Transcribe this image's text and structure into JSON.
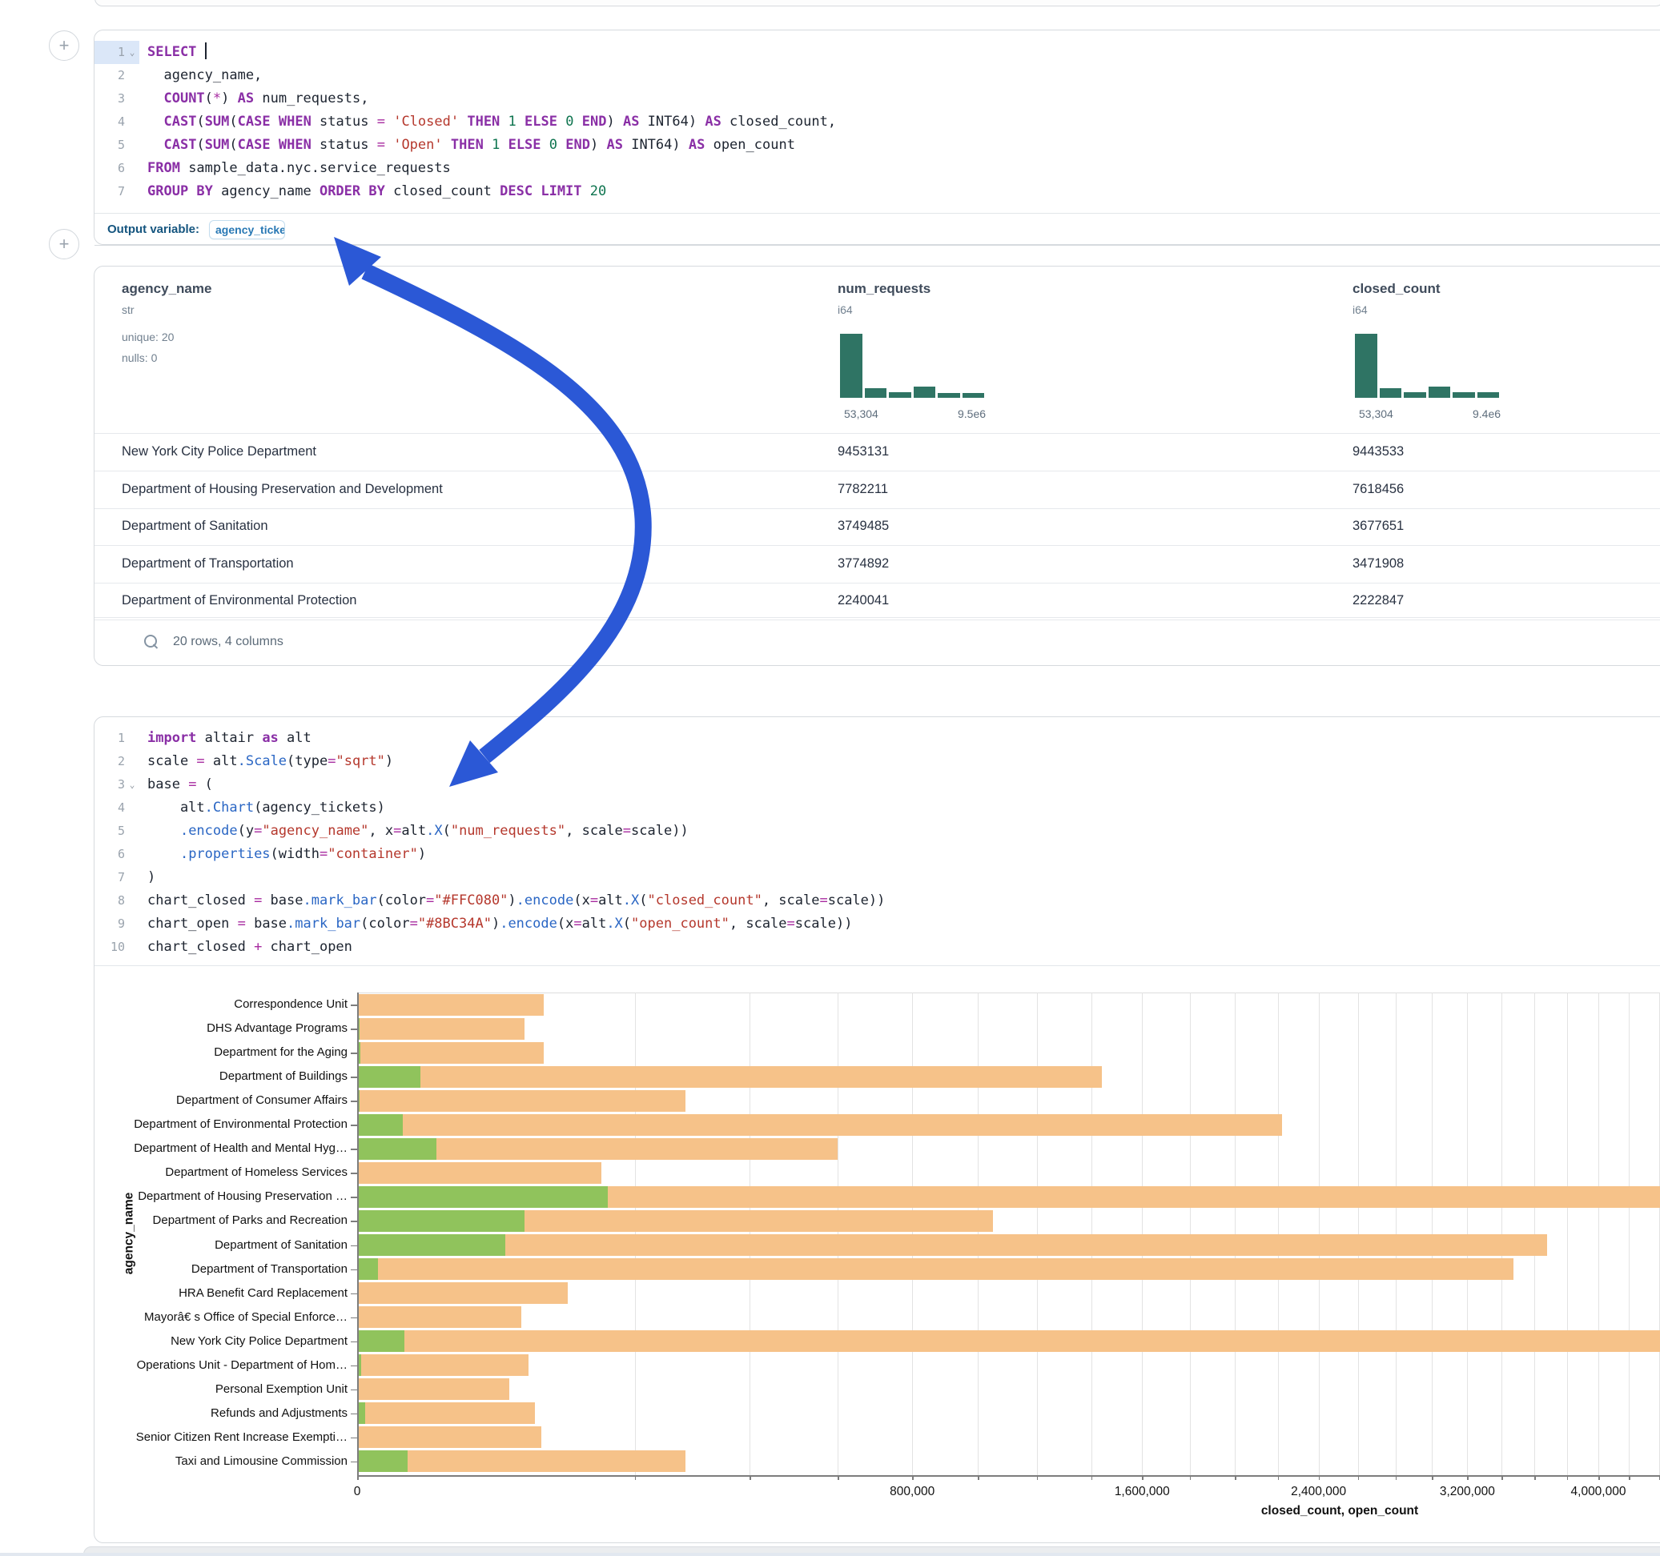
{
  "colors": {
    "closed_bar": "#f6c289",
    "open_bar": "#90c35c",
    "hist_bar": "#2f7464",
    "arrow": "#2b58d6"
  },
  "sql_cell": {
    "lines": [
      {
        "n": "1",
        "fold": true,
        "active": true,
        "tokens": [
          [
            "kw",
            "SELECT"
          ],
          [
            "pl",
            " "
          ],
          [
            "cursor",
            ""
          ]
        ]
      },
      {
        "n": "2",
        "tokens": [
          [
            "pl",
            "  agency_name,"
          ]
        ]
      },
      {
        "n": "3",
        "tokens": [
          [
            "pl",
            "  "
          ],
          [
            "kw",
            "COUNT"
          ],
          [
            "pl",
            "("
          ],
          [
            "op",
            "*"
          ],
          [
            "pl",
            ") "
          ],
          [
            "kw",
            "AS"
          ],
          [
            "pl",
            " num_requests,"
          ]
        ]
      },
      {
        "n": "4",
        "tokens": [
          [
            "pl",
            "  "
          ],
          [
            "kw",
            "CAST"
          ],
          [
            "pl",
            "("
          ],
          [
            "kw",
            "SUM"
          ],
          [
            "pl",
            "("
          ],
          [
            "kw",
            "CASE"
          ],
          [
            "pl",
            " "
          ],
          [
            "kw",
            "WHEN"
          ],
          [
            "pl",
            " status "
          ],
          [
            "op",
            "="
          ],
          [
            "pl",
            " "
          ],
          [
            "str",
            "'Closed'"
          ],
          [
            "pl",
            " "
          ],
          [
            "kw",
            "THEN"
          ],
          [
            "pl",
            " "
          ],
          [
            "num",
            "1"
          ],
          [
            "pl",
            " "
          ],
          [
            "kw",
            "ELSE"
          ],
          [
            "pl",
            " "
          ],
          [
            "num",
            "0"
          ],
          [
            "pl",
            " "
          ],
          [
            "kw",
            "END"
          ],
          [
            "pl",
            ") "
          ],
          [
            "kw",
            "AS"
          ],
          [
            "pl",
            " INT64) "
          ],
          [
            "kw",
            "AS"
          ],
          [
            "pl",
            " closed_count,"
          ]
        ]
      },
      {
        "n": "5",
        "tokens": [
          [
            "pl",
            "  "
          ],
          [
            "kw",
            "CAST"
          ],
          [
            "pl",
            "("
          ],
          [
            "kw",
            "SUM"
          ],
          [
            "pl",
            "("
          ],
          [
            "kw",
            "CASE"
          ],
          [
            "pl",
            " "
          ],
          [
            "kw",
            "WHEN"
          ],
          [
            "pl",
            " status "
          ],
          [
            "op",
            "="
          ],
          [
            "pl",
            " "
          ],
          [
            "str",
            "'Open'"
          ],
          [
            "pl",
            " "
          ],
          [
            "kw",
            "THEN"
          ],
          [
            "pl",
            " "
          ],
          [
            "num",
            "1"
          ],
          [
            "pl",
            " "
          ],
          [
            "kw",
            "ELSE"
          ],
          [
            "pl",
            " "
          ],
          [
            "num",
            "0"
          ],
          [
            "pl",
            " "
          ],
          [
            "kw",
            "END"
          ],
          [
            "pl",
            ") "
          ],
          [
            "kw",
            "AS"
          ],
          [
            "pl",
            " INT64) "
          ],
          [
            "kw",
            "AS"
          ],
          [
            "pl",
            " open_count"
          ]
        ]
      },
      {
        "n": "6",
        "tokens": [
          [
            "kw",
            "FROM"
          ],
          [
            "pl",
            " sample_data.nyc.service_requests"
          ]
        ]
      },
      {
        "n": "7",
        "tokens": [
          [
            "kw",
            "GROUP BY"
          ],
          [
            "pl",
            " agency_name "
          ],
          [
            "kw",
            "ORDER BY"
          ],
          [
            "pl",
            " closed_count "
          ],
          [
            "kw",
            "DESC"
          ],
          [
            "pl",
            " "
          ],
          [
            "kw",
            "LIMIT"
          ],
          [
            "pl",
            " "
          ],
          [
            "num",
            "20"
          ]
        ]
      }
    ],
    "output_variable_label": "Output variable:",
    "output_variable_chip": "agency_tickets"
  },
  "table": {
    "columns": [
      {
        "name": "agency_name",
        "type": "str",
        "stats": [
          "unique: 20",
          "nulls: 0"
        ]
      },
      {
        "name": "num_requests",
        "type": "i64",
        "hist": [
          13,
          2,
          1.2,
          2.2,
          1,
          1
        ],
        "min_label": "53,304",
        "max_label": "9.5e6"
      },
      {
        "name": "closed_count",
        "type": "i64",
        "hist": [
          13,
          2,
          1.2,
          2.2,
          1.2,
          1.1
        ],
        "min_label": "53,304",
        "max_label": "9.4e6"
      }
    ],
    "rows": [
      {
        "agency_name": "New York City Police Department",
        "num_requests": "9453131",
        "closed_count": "9443533"
      },
      {
        "agency_name": "Department of Housing Preservation and Development",
        "num_requests": "7782211",
        "closed_count": "7618456"
      },
      {
        "agency_name": "Department of Sanitation",
        "num_requests": "3749485",
        "closed_count": "3677651"
      },
      {
        "agency_name": "Department of Transportation",
        "num_requests": "3774892",
        "closed_count": "3471908"
      },
      {
        "agency_name": "Department of Environmental Protection",
        "num_requests": "2240041",
        "closed_count": "2222847"
      }
    ],
    "footer": "20 rows, 4 columns"
  },
  "python_cell": {
    "lines": [
      {
        "n": "1",
        "tokens": [
          [
            "kw",
            "import"
          ],
          [
            "pl",
            " altair "
          ],
          [
            "kw",
            "as"
          ],
          [
            "pl",
            " alt"
          ]
        ]
      },
      {
        "n": "2",
        "tokens": [
          [
            "pl",
            "scale "
          ],
          [
            "op",
            "="
          ],
          [
            "pl",
            " alt"
          ],
          [
            "fn",
            ".Scale"
          ],
          [
            "pl",
            "(type"
          ],
          [
            "op",
            "="
          ],
          [
            "str",
            "\"sqrt\""
          ],
          [
            "pl",
            ")"
          ]
        ]
      },
      {
        "n": "3",
        "fold": true,
        "tokens": [
          [
            "pl",
            "base "
          ],
          [
            "op",
            "="
          ],
          [
            "pl",
            " ("
          ]
        ]
      },
      {
        "n": "4",
        "tokens": [
          [
            "pl",
            "    alt"
          ],
          [
            "fn",
            ".Chart"
          ],
          [
            "pl",
            "(agency_tickets)"
          ]
        ]
      },
      {
        "n": "5",
        "tokens": [
          [
            "pl",
            "    "
          ],
          [
            "fn",
            ".encode"
          ],
          [
            "pl",
            "(y"
          ],
          [
            "op",
            "="
          ],
          [
            "str",
            "\"agency_name\""
          ],
          [
            "pl",
            ", x"
          ],
          [
            "op",
            "="
          ],
          [
            "pl",
            "alt"
          ],
          [
            "fn",
            ".X"
          ],
          [
            "pl",
            "("
          ],
          [
            "str",
            "\"num_requests\""
          ],
          [
            "pl",
            ", scale"
          ],
          [
            "op",
            "="
          ],
          [
            "pl",
            "scale))"
          ]
        ]
      },
      {
        "n": "6",
        "tokens": [
          [
            "pl",
            "    "
          ],
          [
            "fn",
            ".properties"
          ],
          [
            "pl",
            "(width"
          ],
          [
            "op",
            "="
          ],
          [
            "str",
            "\"container\""
          ],
          [
            "pl",
            ")"
          ]
        ]
      },
      {
        "n": "7",
        "tokens": [
          [
            "pl",
            ")"
          ]
        ]
      },
      {
        "n": "8",
        "tokens": [
          [
            "pl",
            "chart_closed "
          ],
          [
            "op",
            "="
          ],
          [
            "pl",
            " base"
          ],
          [
            "fn",
            ".mark_bar"
          ],
          [
            "pl",
            "(color"
          ],
          [
            "op",
            "="
          ],
          [
            "str",
            "\"#FFC080\""
          ],
          [
            "pl",
            ")"
          ],
          [
            "fn",
            ".encode"
          ],
          [
            "pl",
            "(x"
          ],
          [
            "op",
            "="
          ],
          [
            "pl",
            "alt"
          ],
          [
            "fn",
            ".X"
          ],
          [
            "pl",
            "("
          ],
          [
            "str",
            "\"closed_count\""
          ],
          [
            "pl",
            ", scale"
          ],
          [
            "op",
            "="
          ],
          [
            "pl",
            "scale))"
          ]
        ]
      },
      {
        "n": "9",
        "tokens": [
          [
            "pl",
            "chart_open "
          ],
          [
            "op",
            "="
          ],
          [
            "pl",
            " base"
          ],
          [
            "fn",
            ".mark_bar"
          ],
          [
            "pl",
            "(color"
          ],
          [
            "op",
            "="
          ],
          [
            "str",
            "\"#8BC34A\""
          ],
          [
            "pl",
            ")"
          ],
          [
            "fn",
            ".encode"
          ],
          [
            "pl",
            "(x"
          ],
          [
            "op",
            "="
          ],
          [
            "pl",
            "alt"
          ],
          [
            "fn",
            ".X"
          ],
          [
            "pl",
            "("
          ],
          [
            "str",
            "\"open_count\""
          ],
          [
            "pl",
            ", scale"
          ],
          [
            "op",
            "="
          ],
          [
            "pl",
            "scale))"
          ]
        ]
      },
      {
        "n": "10",
        "tokens": [
          [
            "pl",
            "chart_closed "
          ],
          [
            "op",
            "+"
          ],
          [
            "pl",
            " chart_open"
          ]
        ]
      }
    ]
  },
  "chart_data": {
    "type": "bar",
    "orientation": "horizontal",
    "x_scale": "sqrt",
    "xlabel": "closed_count, open_count",
    "ylabel": "agency_name",
    "grid_step": 200000,
    "grid_max": 4400000,
    "x_ticks": [
      {
        "value": 0,
        "label": "0"
      },
      {
        "value": 800000,
        "label": "800,000"
      },
      {
        "value": 1600000,
        "label": "1,600,000"
      },
      {
        "value": 2400000,
        "label": "2,400,000"
      },
      {
        "value": 3200000,
        "label": "3,200,000"
      },
      {
        "value": 4000000,
        "label": "4,000,000"
      }
    ],
    "categories": [
      "Correspondence Unit",
      "DHS Advantage Programs",
      "Department for the Aging",
      "Department of Buildings",
      "Department of Consumer Affairs",
      "Department of Environmental Protection",
      "Department of Health and Mental Hyg…",
      "Department of Homeless Services",
      "Department of Housing Preservation …",
      "Department of Parks and Recreation",
      "Department of Sanitation",
      "Department of Transportation",
      "HRA Benefit Card Replacement",
      "Mayorâ€ s Office of Special Enforce…",
      "New York City Police Department",
      "Operations Unit - Department of Hom…",
      "Personal Exemption Unit",
      "Refunds and Adjustments",
      "Senior Citizen Rent Increase Exempti…",
      "Taxi and Limousine Commission"
    ],
    "series": [
      {
        "name": "closed_count",
        "color": "#f6c289",
        "values": [
          90000,
          73000,
          90000,
          1440000,
          280000,
          2222847,
          600000,
          155000,
          7618456,
          1050000,
          3677651,
          3471908,
          115000,
          70000,
          9443533,
          76000,
          60000,
          82000,
          88000,
          280000
        ]
      },
      {
        "name": "open_count",
        "color": "#90c35c",
        "values": [
          0,
          15,
          30,
          10400,
          15,
          5400,
          16300,
          0,
          163000,
          72700,
          57000,
          1100,
          0,
          0,
          5800,
          40,
          0,
          170,
          0,
          6600
        ]
      }
    ]
  },
  "arrow": {
    "name": "annotation-arrow"
  }
}
